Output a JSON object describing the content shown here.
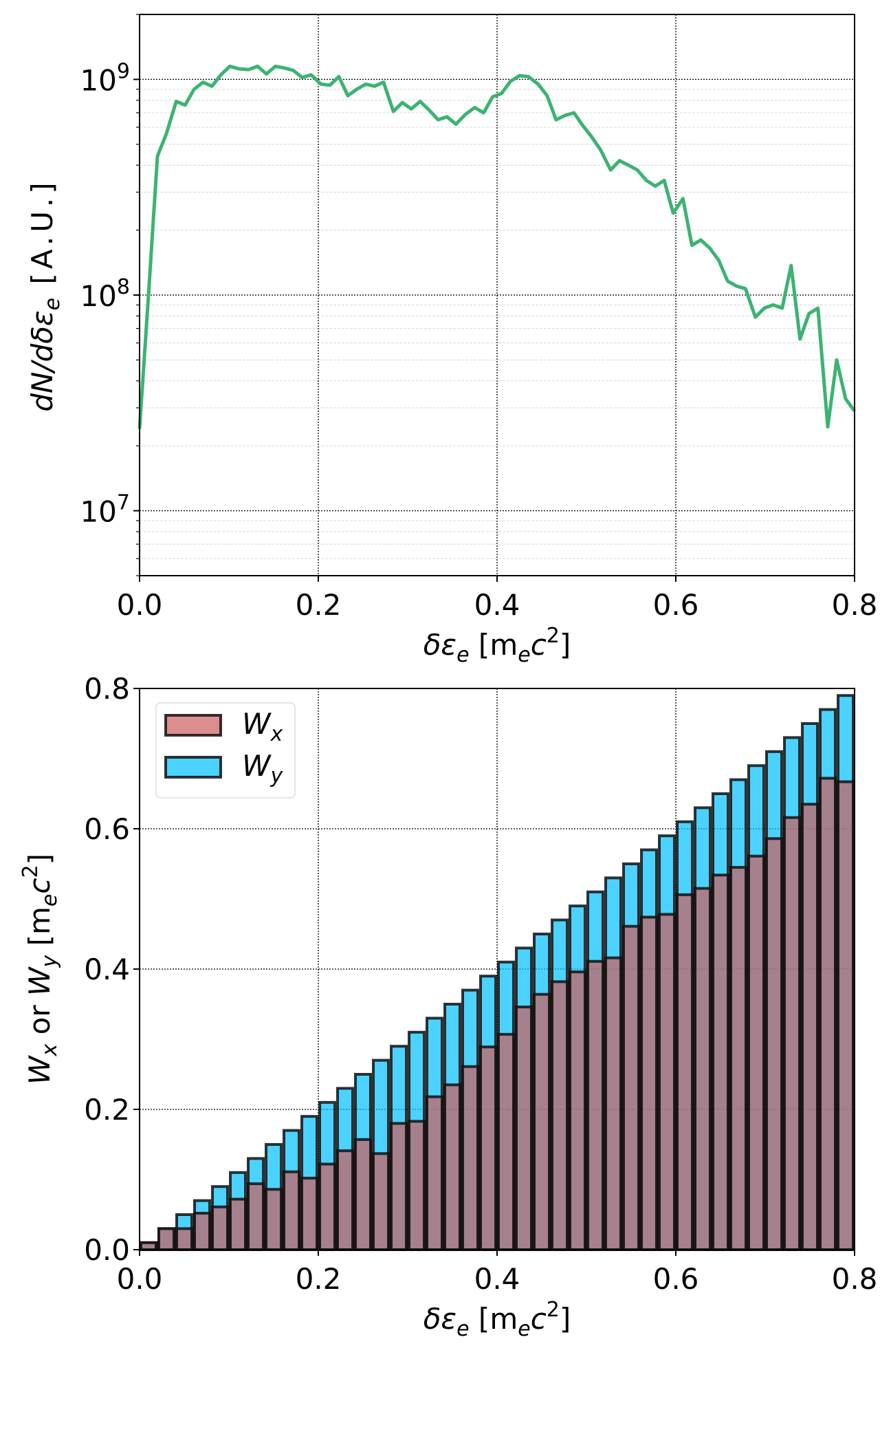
{
  "chart_data": [
    {
      "type": "line",
      "yscale": "log",
      "xlim": [
        0,
        0.8
      ],
      "ylim": [
        5000000.0,
        2000000000.0
      ],
      "grid": true,
      "xticks": [
        "0.0",
        "0.2",
        "0.4",
        "0.6",
        "0.8"
      ],
      "yticks": [
        {
          "base": "10",
          "exp": "7"
        },
        {
          "base": "10",
          "exp": "8"
        },
        {
          "base": "10",
          "exp": "9"
        }
      ],
      "xlabel": {
        "main": "δε",
        "sub": "e",
        "unit_open": "  [m",
        "unit_sub": "e",
        "unit_c": "c",
        "unit_sup": "2",
        "unit_close": "]"
      },
      "ylabel": {
        "main": "dN/dδε",
        "sub": "e",
        "rest": " [A.U.]"
      },
      "color": "#3cb371",
      "series": [
        {
          "x": [
            0.0,
            0.01,
            0.02,
            0.03,
            0.041,
            0.051,
            0.061,
            0.071,
            0.081,
            0.091,
            0.101,
            0.111,
            0.122,
            0.132,
            0.142,
            0.152,
            0.162,
            0.172,
            0.182,
            0.192,
            0.203,
            0.213,
            0.223,
            0.233,
            0.243,
            0.253,
            0.263,
            0.273,
            0.284,
            0.294,
            0.304,
            0.314,
            0.324,
            0.334,
            0.344,
            0.354,
            0.365,
            0.375,
            0.385,
            0.395,
            0.405,
            0.415,
            0.425,
            0.435,
            0.446,
            0.456,
            0.466,
            0.476,
            0.486,
            0.496,
            0.506,
            0.516,
            0.527,
            0.537,
            0.547,
            0.557,
            0.567,
            0.577,
            0.587,
            0.597,
            0.608,
            0.618,
            0.628,
            0.638,
            0.648,
            0.658,
            0.668,
            0.678,
            0.689,
            0.699,
            0.709,
            0.719,
            0.729,
            0.739,
            0.749,
            0.759,
            0.77,
            0.78,
            0.79,
            0.8
          ],
          "y": [
            24000000.0,
            100000000.0,
            440000000.0,
            560000000.0,
            790000000.0,
            760000000.0,
            900000000.0,
            970000000.0,
            930000000.0,
            1050000000.0,
            1150000000.0,
            1120000000.0,
            1110000000.0,
            1150000000.0,
            1060000000.0,
            1150000000.0,
            1130000000.0,
            1100000000.0,
            1020000000.0,
            1050000000.0,
            950000000.0,
            940000000.0,
            1030000000.0,
            840000000.0,
            900000000.0,
            950000000.0,
            930000000.0,
            970000000.0,
            710000000.0,
            780000000.0,
            730000000.0,
            790000000.0,
            720000000.0,
            650000000.0,
            670000000.0,
            620000000.0,
            690000000.0,
            740000000.0,
            700000000.0,
            830000000.0,
            860000000.0,
            980000000.0,
            1040000000.0,
            1030000000.0,
            950000000.0,
            840000000.0,
            650000000.0,
            680000000.0,
            700000000.0,
            610000000.0,
            540000000.0,
            470000000.0,
            380000000.0,
            420000000.0,
            400000000.0,
            380000000.0,
            340000000.0,
            320000000.0,
            340000000.0,
            240000000.0,
            280000000.0,
            170000000.0,
            180000000.0,
            165000000.0,
            145000000.0,
            116000000.0,
            110000000.0,
            107000000.0,
            79000000.0,
            87000000.0,
            90000000.0,
            87000000.0,
            137000000.0,
            62500000.0,
            82000000.0,
            87000000.0,
            24500000.0,
            50000000.0,
            33000000.0,
            29000000.0
          ]
        }
      ]
    },
    {
      "type": "bar",
      "xlim": [
        0,
        0.8
      ],
      "ylim": [
        0,
        0.8
      ],
      "grid": true,
      "bar_width": 0.02,
      "xticks": [
        "0.0",
        "0.2",
        "0.4",
        "0.6",
        "0.8"
      ],
      "yticks": [
        "0.0",
        "0.2",
        "0.4",
        "0.6",
        "0.8"
      ],
      "xlabel": {
        "main": "δε",
        "sub": "e",
        "unit_open": "  [m",
        "unit_sub": "e",
        "unit_c": "c",
        "unit_sup": "2",
        "unit_close": "]"
      },
      "ylabel": {
        "w1": "W",
        "s1": "x",
        "mid": " or ",
        "w2": "W",
        "s2": "y",
        "unit_open": " [m",
        "unit_sub": "e",
        "unit_c": "c",
        "unit_sup": "2",
        "unit_close": "]"
      },
      "legend": {
        "placement": "top-left"
      },
      "x": [
        0.0,
        0.02,
        0.04,
        0.06,
        0.08,
        0.1,
        0.12,
        0.14,
        0.16,
        0.18,
        0.2,
        0.22,
        0.24,
        0.26,
        0.28,
        0.3,
        0.32,
        0.34,
        0.36,
        0.38,
        0.4,
        0.42,
        0.44,
        0.46,
        0.48,
        0.5,
        0.52,
        0.54,
        0.56,
        0.58,
        0.6,
        0.62,
        0.64,
        0.66,
        0.68,
        0.7,
        0.72,
        0.74,
        0.76,
        0.78
      ],
      "series": [
        {
          "name": "W",
          "sub": "y",
          "color": "#00bfff",
          "values": [
            0.01,
            0.03,
            0.05,
            0.07,
            0.09,
            0.11,
            0.13,
            0.15,
            0.17,
            0.19,
            0.21,
            0.23,
            0.25,
            0.27,
            0.29,
            0.31,
            0.33,
            0.35,
            0.37,
            0.39,
            0.41,
            0.43,
            0.45,
            0.47,
            0.49,
            0.51,
            0.53,
            0.55,
            0.57,
            0.59,
            0.61,
            0.63,
            0.65,
            0.67,
            0.69,
            0.71,
            0.73,
            0.75,
            0.77,
            0.79
          ]
        },
        {
          "name": "W",
          "sub": "x",
          "color": "#cd5c5c",
          "values": [
            0.01,
            0.03,
            0.03,
            0.052,
            0.061,
            0.072,
            0.094,
            0.086,
            0.111,
            0.102,
            0.122,
            0.141,
            0.157,
            0.137,
            0.18,
            0.183,
            0.218,
            0.235,
            0.261,
            0.289,
            0.307,
            0.346,
            0.364,
            0.382,
            0.396,
            0.411,
            0.416,
            0.461,
            0.474,
            0.478,
            0.506,
            0.515,
            0.534,
            0.545,
            0.561,
            0.586,
            0.616,
            0.635,
            0.672,
            0.667
          ]
        }
      ]
    }
  ]
}
